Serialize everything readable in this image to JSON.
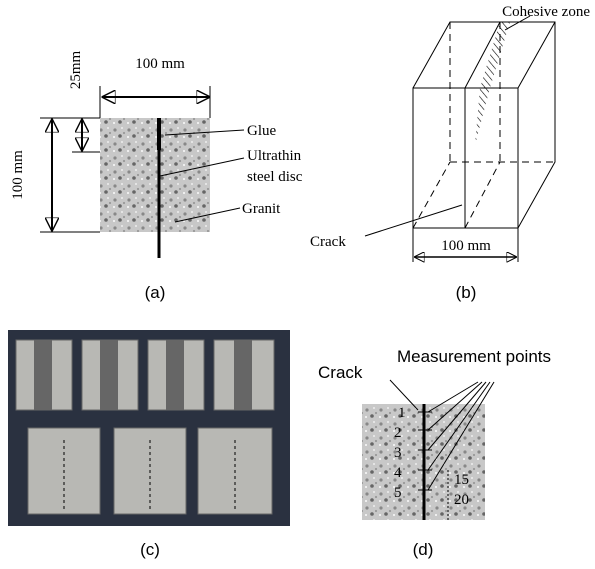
{
  "panel_a": {
    "width_label": "100 mm",
    "notch_label": "25mm",
    "height_label": "100 mm",
    "glue": "Glue",
    "disc": [
      "Ultrathin",
      "steel disc"
    ],
    "granite": "Granit",
    "caption": "(a)"
  },
  "panel_b": {
    "zone": "Cohesive zone",
    "crack": "Crack",
    "width_label": "100 mm",
    "caption": "(b)"
  },
  "panel_c": {
    "caption": "(c)"
  },
  "panel_d": {
    "title": "Measurement points",
    "crack": "Crack",
    "points": [
      "1",
      "2",
      "3",
      "4",
      "5"
    ],
    "spacing": [
      "15",
      "20"
    ],
    "caption": "(d)"
  }
}
